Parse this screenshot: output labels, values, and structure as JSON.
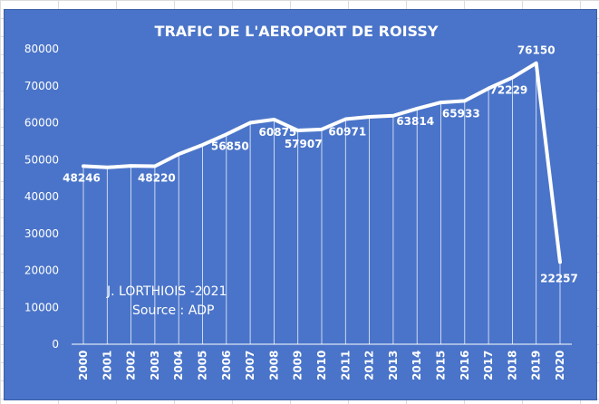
{
  "chart_data": {
    "type": "line",
    "title": "TRAFIC DE L'AEROPORT DE ROISSY",
    "categories": [
      "2000",
      "2001",
      "2002",
      "2003",
      "2004",
      "2005",
      "2006",
      "2007",
      "2008",
      "2009",
      "2010",
      "2011",
      "2012",
      "2013",
      "2014",
      "2015",
      "2016",
      "2017",
      "2018",
      "2019",
      "2020"
    ],
    "values": [
      48246,
      47900,
      48300,
      48220,
      51500,
      54000,
      56850,
      60000,
      60875,
      57907,
      58200,
      60971,
      61600,
      61900,
      63814,
      65500,
      65933,
      69300,
      72229,
      76150,
      22257
    ],
    "data_labels": {
      "0": "48246",
      "3": "48220",
      "6": "56850",
      "8": "60875",
      "9": "57907",
      "11": "60971",
      "14": "63814",
      "16": "65933",
      "18": "72229",
      "19": "76150",
      "20": "22257"
    },
    "yticks": [
      "0",
      "10000",
      "20000",
      "30000",
      "40000",
      "50000",
      "60000",
      "70000",
      "80000"
    ],
    "ylim": [
      0,
      80000
    ],
    "grid": "vertical drop lines",
    "legend": "none",
    "annotation_lines": [
      "J. LORTHIOIS -2021",
      "Source : ADP"
    ],
    "colors": {
      "background": "#4a74c9",
      "line": "#ffffff",
      "text": "#ffffff"
    }
  }
}
